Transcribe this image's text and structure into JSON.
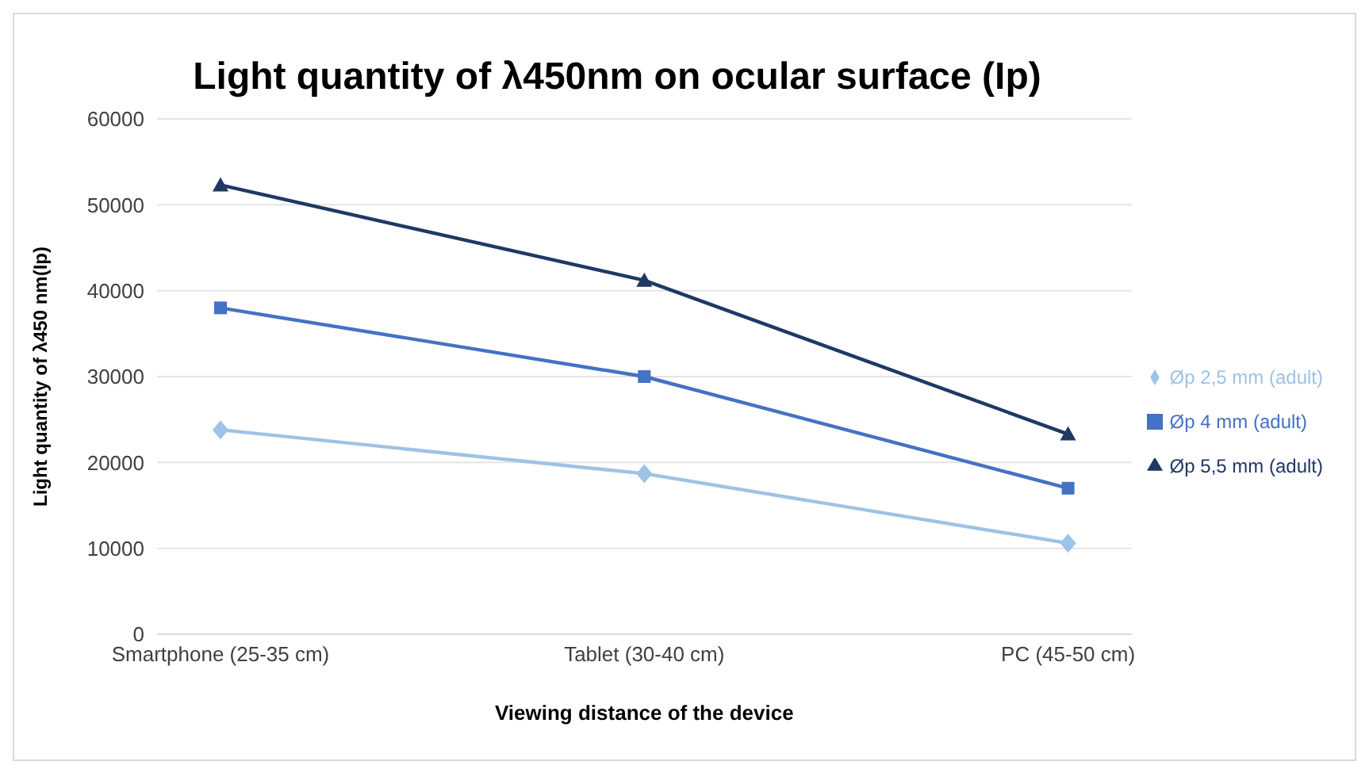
{
  "chart_data": {
    "type": "line",
    "title": "Light quantity of λ450nm on ocular surface (Ip)",
    "xlabel": "Viewing distance of the device",
    "ylabel": "Light quantity of  λ450 nm(Ip)",
    "categories": [
      "Smartphone (25-35 cm)",
      "Tablet (30-40 cm)",
      "PC (45-50 cm)"
    ],
    "series": [
      {
        "name": "Øp 2,5 mm (adult)",
        "color": "#9dc3e6",
        "marker": "diamond",
        "values": [
          23800,
          18700,
          10600
        ]
      },
      {
        "name": "Øp 4 mm (adult)",
        "color": "#4472c4",
        "marker": "square",
        "values": [
          38000,
          30000,
          17000
        ]
      },
      {
        "name": "Øp 5,5 mm (adult)",
        "color": "#203864",
        "marker": "triangle",
        "values": [
          52300,
          41200,
          23300
        ]
      }
    ],
    "ylim": [
      0,
      60000
    ],
    "yticks": [
      0,
      10000,
      20000,
      30000,
      40000,
      50000,
      60000
    ],
    "grid": "y",
    "legend": "right",
    "line_style": "solid"
  }
}
